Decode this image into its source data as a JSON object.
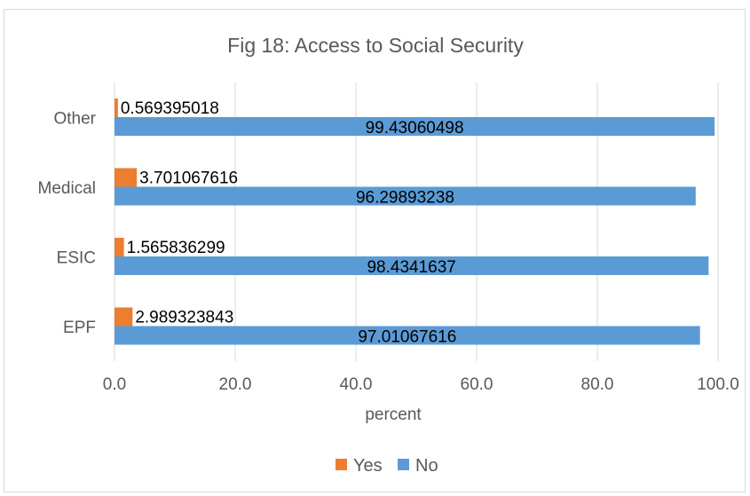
{
  "chart_data": {
    "type": "bar",
    "orientation": "horizontal",
    "title": "Fig 18: Access to Social Security",
    "xlabel": "percent",
    "ylabel": "",
    "categories": [
      "Other",
      "Medical",
      "ESIC",
      "EPF"
    ],
    "series": [
      {
        "name": "Yes",
        "color": "#ED7D31",
        "values": [
          0.569395018,
          3.701067616,
          1.565836299,
          2.989323843
        ],
        "labels": [
          "0.569395018",
          "3.701067616",
          "1.565836299",
          "2.989323843"
        ]
      },
      {
        "name": "No",
        "color": "#5B9BD5",
        "values": [
          99.43060498,
          96.29893238,
          98.4341637,
          97.01067616
        ],
        "labels": [
          "99.43060498",
          "96.29893238",
          "98.4341637",
          "97.01067616"
        ]
      }
    ],
    "xlim": [
      0,
      100
    ],
    "xticks": [
      "0.0",
      "20.0",
      "40.0",
      "60.0",
      "80.0",
      "100.0"
    ],
    "grid": true,
    "legend_position": "bottom"
  }
}
